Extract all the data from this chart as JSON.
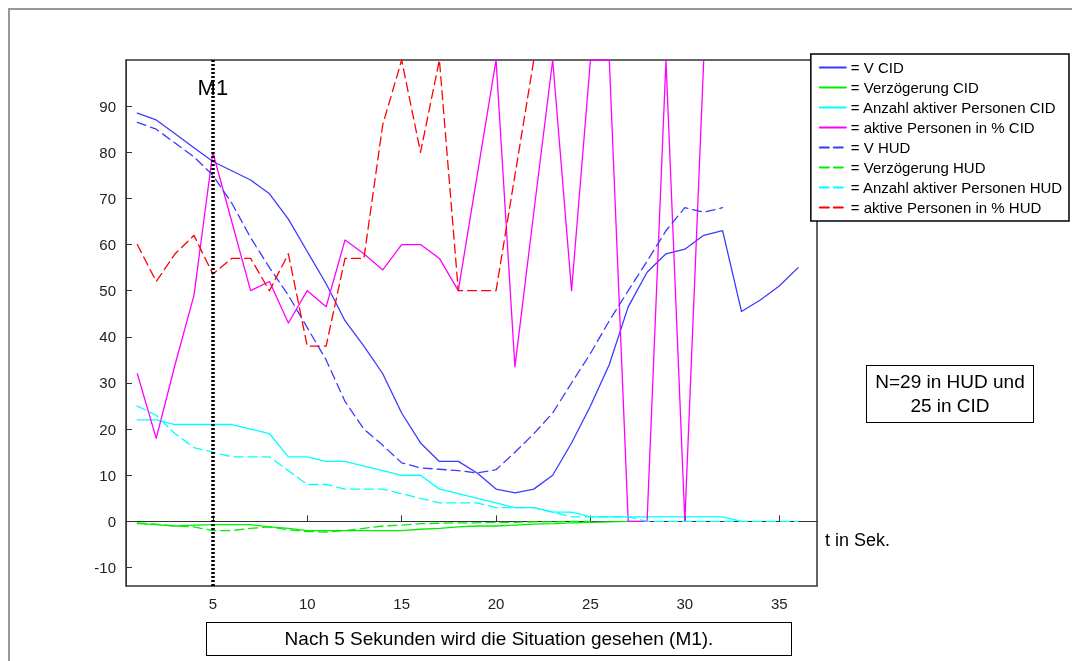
{
  "chart_data": {
    "type": "line",
    "xlabel": "t in Sek.",
    "xlim": [
      0.4,
      37
    ],
    "xticks": [
      5,
      10,
      15,
      20,
      25,
      30,
      35
    ],
    "ylim": [
      -14,
      100
    ],
    "yticks": [
      -10,
      0,
      10,
      20,
      30,
      40,
      50,
      60,
      70,
      80,
      90
    ],
    "grid": false,
    "legend": "top right",
    "marker": "none",
    "series": [
      {
        "name": "= V CID",
        "color": "#3b3bff",
        "line_style": "solid",
        "x": [
          1,
          2,
          3,
          4,
          5,
          6,
          7,
          8,
          9,
          10,
          11,
          12,
          13,
          14,
          15,
          16,
          17,
          18,
          19,
          20,
          21,
          22,
          23,
          24,
          25,
          26,
          27,
          28,
          29,
          30,
          31,
          32,
          33,
          34,
          35,
          36
        ],
        "values": [
          88.5,
          87,
          84,
          81,
          78,
          76,
          74,
          71,
          65.5,
          58.5,
          51.5,
          43.5,
          38,
          32,
          23.5,
          17,
          13,
          13,
          10.5,
          7,
          6.2,
          7,
          10,
          17,
          25,
          34,
          46.5,
          54,
          58,
          59,
          62,
          63,
          45.5,
          48,
          51,
          55
        ]
      },
      {
        "name": "= Verzögerung CID",
        "color": "#00ee00",
        "line_style": "solid",
        "x": [
          1,
          2,
          3,
          4,
          5,
          6,
          7,
          8,
          9,
          10,
          11,
          12,
          13,
          14,
          15,
          16,
          17,
          18,
          19,
          20,
          21,
          22,
          23,
          24,
          25,
          26,
          27,
          28
        ],
        "values": [
          -0.5,
          -0.7,
          -1,
          -0.8,
          -0.7,
          -0.7,
          -0.7,
          -1.2,
          -1.5,
          -2,
          -2,
          -2,
          -2,
          -2,
          -2,
          -1.7,
          -1.5,
          -1.2,
          -1,
          -1,
          -0.8,
          -0.6,
          -0.5,
          -0.3,
          -0.2,
          -0.1,
          0,
          0
        ]
      },
      {
        "name": "= Anzahl aktiver Personen CID",
        "color": "#00ffff",
        "line_style": "solid",
        "x": [
          1,
          2,
          3,
          4,
          5,
          6,
          7,
          8,
          9,
          10,
          11,
          12,
          13,
          14,
          15,
          16,
          17,
          18,
          19,
          20,
          21,
          22,
          23,
          24,
          25,
          26,
          27,
          28,
          29,
          30,
          31,
          32,
          33
        ],
        "values": [
          22,
          22,
          21,
          21,
          21,
          21,
          20,
          19,
          14,
          14,
          13,
          13,
          12,
          11,
          10,
          10,
          7,
          6,
          5,
          4,
          3,
          3,
          2,
          2,
          1,
          1,
          1,
          1,
          1,
          1,
          1,
          1,
          0
        ]
      },
      {
        "name": "= aktive Personen in % CID",
        "color": "#ff00ff",
        "line_style": "solid",
        "x": [
          1,
          2,
          3,
          4,
          5,
          6,
          7,
          8,
          9,
          10,
          11,
          12,
          13,
          14,
          15,
          16,
          17,
          18,
          19,
          20,
          21,
          22,
          23,
          24,
          25,
          26,
          27,
          28,
          29,
          30,
          31
        ],
        "values": [
          32,
          18,
          34,
          49,
          80,
          65,
          50,
          52,
          43,
          50,
          46.5,
          61,
          58,
          54.5,
          60,
          60,
          57,
          50,
          75,
          100,
          33.5,
          67,
          100,
          50,
          100,
          100,
          0,
          0,
          100,
          0,
          100
        ]
      },
      {
        "name": "= V HUD",
        "color": "#3b3bff",
        "line_style": "dashed",
        "x": [
          1,
          2,
          3,
          4,
          5,
          6,
          7,
          8,
          9,
          10,
          11,
          12,
          13,
          14,
          15,
          16,
          17,
          18,
          19,
          20,
          21,
          22,
          23,
          24,
          25,
          26,
          27,
          28,
          29,
          30,
          31,
          32
        ],
        "values": [
          86.5,
          85,
          82,
          79,
          75,
          69,
          61.5,
          55,
          49,
          42,
          35,
          26,
          20,
          16.5,
          12.7,
          11.6,
          11.3,
          11,
          10.5,
          11.2,
          15,
          19,
          23.5,
          30,
          36.4,
          43.5,
          50,
          56.4,
          63,
          68,
          67,
          68
        ]
      },
      {
        "name": "= Verzögerung HUD",
        "color": "#00ee00",
        "line_style": "dashed",
        "x": [
          1,
          2,
          3,
          4,
          5,
          6,
          7,
          8,
          9,
          10,
          11,
          12,
          13,
          14,
          15,
          16,
          17,
          18,
          19,
          20,
          21,
          22,
          23,
          24,
          25
        ],
        "values": [
          -0.3,
          -0.6,
          -1,
          -1.2,
          -2,
          -2,
          -1.5,
          -1.2,
          -1.8,
          -2.2,
          -2.3,
          -2,
          -1.5,
          -1,
          -0.8,
          -0.5,
          -0.4,
          -0.3,
          -0.3,
          -0.2,
          -0.2,
          -0.1,
          -0.1,
          0,
          0
        ]
      },
      {
        "name": "= Anzahl aktiver Personen HUD",
        "color": "#00ffff",
        "line_style": "dashed",
        "x": [
          1,
          2,
          3,
          4,
          5,
          6,
          7,
          8,
          9,
          10,
          11,
          12,
          13,
          14,
          15,
          16,
          17,
          18,
          19,
          20,
          21,
          22,
          23,
          24,
          25,
          26,
          27,
          28,
          29,
          30,
          31,
          32,
          33,
          34,
          35,
          36
        ],
        "values": [
          25,
          23,
          19,
          16,
          15,
          14,
          14,
          14,
          11,
          8,
          8,
          7,
          7,
          7,
          6,
          5,
          4,
          4,
          4,
          3,
          3,
          3,
          2,
          1,
          1,
          1,
          1,
          0,
          0,
          0,
          0,
          0,
          0,
          0,
          0,
          0
        ]
      },
      {
        "name": "= aktive Personen in % HUD",
        "color": "#ff0000",
        "line_style": "dashed",
        "x": [
          1,
          2,
          3,
          4,
          5,
          6,
          7,
          8,
          9,
          10,
          11,
          12,
          13,
          14,
          15,
          16,
          17,
          18,
          19,
          20,
          21,
          22
        ],
        "values": [
          60,
          52,
          58,
          62,
          53.6,
          57,
          57,
          50,
          58,
          38,
          38,
          57,
          57,
          86,
          100,
          80,
          100,
          50,
          50,
          50,
          75,
          100
        ]
      }
    ],
    "ref_lines": [
      {
        "axis": "x",
        "value": 5,
        "label": "M1",
        "color": "#000000",
        "line_style": "dotted"
      }
    ],
    "annotations": [
      "N=29 in HUD und 25 in CID",
      "Nach 5 Sekunden wird die Situation gesehen (M1)."
    ]
  }
}
